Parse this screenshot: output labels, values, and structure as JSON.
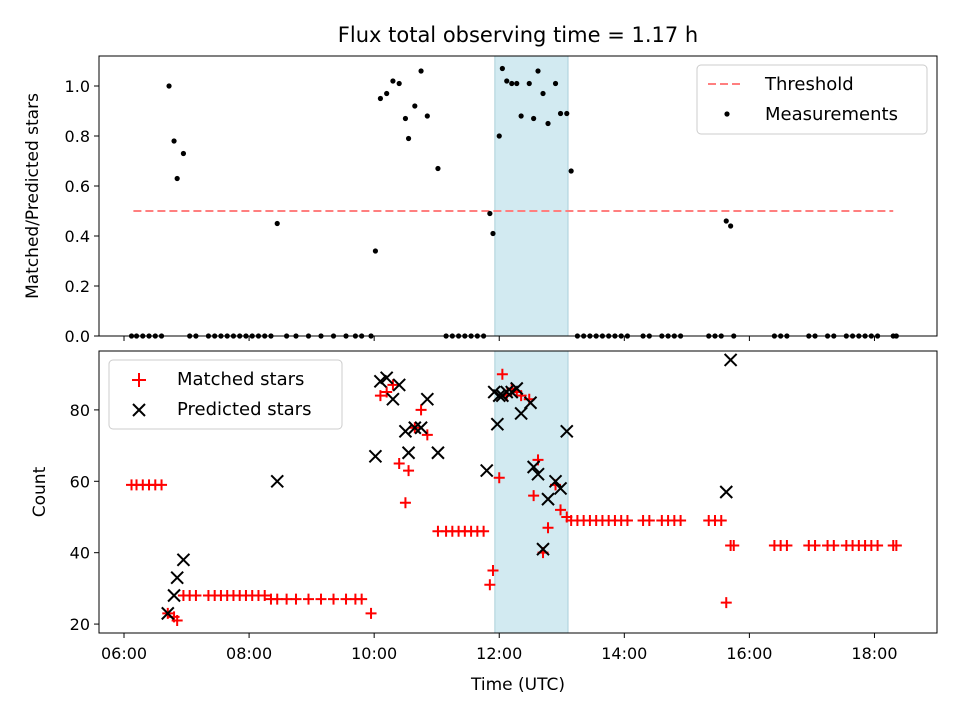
{
  "chart_data": [
    {
      "type": "scatter",
      "title": "Flux total observing time = 1.17 h",
      "ylabel": "Matched/Predicted stars",
      "xlim": [
        5.6,
        19.0
      ],
      "ylim": [
        0.0,
        1.12
      ],
      "yticks": [
        "0.0",
        "0.2",
        "0.4",
        "0.6",
        "0.8",
        "1.0"
      ],
      "yticks_values": [
        0.0,
        0.2,
        0.4,
        0.6,
        0.8,
        1.0
      ],
      "shaded_span": [
        11.93,
        13.1
      ],
      "colors": {
        "threshold": "#ff7f7f",
        "measurements": "#000000",
        "span": "#add8e6"
      },
      "legend_position": "upper-right",
      "legend": [
        "Threshold",
        "Measurements"
      ],
      "threshold": {
        "y": 0.5,
        "x": [
          6.15,
          18.3
        ]
      },
      "series": [
        {
          "name": "Measurements",
          "x": [
            6.12,
            6.2,
            6.3,
            6.4,
            6.5,
            6.6,
            6.72,
            6.8,
            6.85,
            6.95,
            7.05,
            7.15,
            7.35,
            7.45,
            7.55,
            7.65,
            7.75,
            7.85,
            7.95,
            8.05,
            8.15,
            8.25,
            8.35,
            8.45,
            8.6,
            8.75,
            8.95,
            9.15,
            9.35,
            9.55,
            9.7,
            9.8,
            9.95,
            10.02,
            10.1,
            10.2,
            10.3,
            10.4,
            10.5,
            10.55,
            10.65,
            10.75,
            10.85,
            11.02,
            11.15,
            11.25,
            11.35,
            11.45,
            11.55,
            11.65,
            11.75,
            11.85,
            11.9,
            12.0,
            12.05,
            12.12,
            12.2,
            12.28,
            12.35,
            12.48,
            12.55,
            12.62,
            12.7,
            12.78,
            12.9,
            12.98,
            13.08,
            13.15,
            13.25,
            13.35,
            13.45,
            13.55,
            13.65,
            13.75,
            13.85,
            13.95,
            14.05,
            14.3,
            14.4,
            14.6,
            14.7,
            14.8,
            14.9,
            15.35,
            15.45,
            15.55,
            15.63,
            15.7,
            15.75,
            16.4,
            16.5,
            16.6,
            16.95,
            17.05,
            17.25,
            17.35,
            17.55,
            17.65,
            17.75,
            17.85,
            17.95,
            18.05,
            18.3,
            18.35
          ],
          "y": [
            0,
            0,
            0,
            0,
            0,
            0,
            1.0,
            0.78,
            0.63,
            0.73,
            0,
            0,
            0,
            0,
            0,
            0,
            0,
            0,
            0,
            0,
            0,
            0,
            0,
            0.45,
            0,
            0,
            0,
            0,
            0,
            0,
            0,
            0,
            0,
            0.34,
            0.95,
            0.97,
            1.02,
            1.01,
            0.87,
            0.79,
            0.92,
            1.06,
            0.88,
            0.67,
            0,
            0,
            0,
            0,
            0,
            0,
            0,
            0.49,
            0.41,
            0.8,
            1.07,
            1.02,
            1.01,
            1.01,
            0.88,
            1.01,
            0.87,
            1.06,
            0.97,
            0.85,
            1.01,
            0.89,
            0.89,
            0.66,
            0,
            0,
            0,
            0,
            0,
            0,
            0,
            0,
            0,
            0,
            0,
            0,
            0,
            0,
            0,
            0,
            0,
            0,
            0.46,
            0.44,
            0,
            0,
            0,
            0,
            0,
            0,
            0,
            0,
            0,
            0,
            0,
            0,
            0,
            0,
            0,
            0
          ]
        }
      ]
    },
    {
      "type": "scatter",
      "xlabel": "Time (UTC)",
      "ylabel": "Count",
      "xlim": [
        5.6,
        19.0
      ],
      "ylim": [
        17.5,
        96.5
      ],
      "xticks": [
        "06:00",
        "08:00",
        "10:00",
        "12:00",
        "14:00",
        "16:00",
        "18:00"
      ],
      "xticks_values": [
        6,
        8,
        10,
        12,
        14,
        16,
        18
      ],
      "yticks": [
        "20",
        "40",
        "60",
        "80"
      ],
      "yticks_values": [
        20,
        40,
        60,
        80
      ],
      "shaded_span": [
        11.93,
        13.1
      ],
      "colors": {
        "matched": "#ff0000",
        "predicted": "#000000",
        "span": "#add8e6"
      },
      "legend_position": "upper-left",
      "legend": [
        "Matched stars",
        "Predicted stars"
      ],
      "series": [
        {
          "name": "Matched stars",
          "x": [
            6.12,
            6.2,
            6.3,
            6.4,
            6.5,
            6.6,
            6.7,
            6.8,
            6.85,
            6.95,
            7.05,
            7.15,
            7.35,
            7.45,
            7.55,
            7.65,
            7.75,
            7.85,
            7.95,
            8.05,
            8.15,
            8.25,
            8.35,
            8.45,
            8.6,
            8.75,
            8.95,
            9.15,
            9.35,
            9.55,
            9.7,
            9.8,
            9.95,
            10.1,
            10.2,
            10.3,
            10.4,
            10.5,
            10.55,
            10.65,
            10.75,
            10.85,
            11.02,
            11.15,
            11.25,
            11.35,
            11.45,
            11.55,
            11.65,
            11.75,
            11.85,
            11.9,
            12.0,
            12.05,
            12.12,
            12.2,
            12.28,
            12.35,
            12.48,
            12.55,
            12.62,
            12.7,
            12.78,
            12.9,
            12.98,
            13.08,
            13.15,
            13.25,
            13.35,
            13.45,
            13.55,
            13.65,
            13.75,
            13.85,
            13.95,
            14.05,
            14.3,
            14.4,
            14.6,
            14.7,
            14.8,
            14.9,
            15.35,
            15.45,
            15.55,
            15.63,
            15.7,
            15.75,
            16.4,
            16.5,
            16.6,
            16.95,
            17.05,
            17.25,
            17.35,
            17.55,
            17.65,
            17.75,
            17.85,
            17.95,
            18.05,
            18.3,
            18.35
          ],
          "y": [
            59,
            59,
            59,
            59,
            59,
            59,
            23,
            22,
            21,
            28,
            28,
            28,
            28,
            28,
            28,
            28,
            28,
            28,
            28,
            28,
            28,
            28,
            27,
            27,
            27,
            27,
            27,
            27,
            27,
            27,
            27,
            27,
            23,
            84,
            85,
            87,
            65,
            54,
            63,
            75,
            80,
            73,
            46,
            46,
            46,
            46,
            46,
            46,
            46,
            46,
            31,
            35,
            61,
            90,
            84,
            86,
            85,
            84,
            83,
            56,
            66,
            40,
            47,
            59,
            52,
            50,
            49,
            49,
            49,
            49,
            49,
            49,
            49,
            49,
            49,
            49,
            49,
            49,
            49,
            49,
            49,
            49,
            49,
            49,
            49,
            26,
            42,
            42,
            42,
            42,
            42,
            42,
            42,
            42,
            42,
            42,
            42,
            42,
            42,
            42,
            42,
            42,
            42
          ]
        },
        {
          "name": "Predicted stars",
          "x": [
            6.7,
            6.8,
            6.85,
            6.95,
            8.45,
            10.02,
            10.1,
            10.2,
            10.3,
            10.4,
            10.5,
            10.55,
            10.65,
            10.75,
            10.85,
            11.02,
            11.8,
            11.92,
            11.97,
            12.0,
            12.05,
            12.12,
            12.2,
            12.28,
            12.35,
            12.5,
            12.55,
            12.62,
            12.7,
            12.78,
            12.9,
            12.98,
            13.08,
            15.63,
            15.7
          ],
          "y": [
            23,
            28,
            33,
            38,
            60,
            67,
            88,
            89,
            83,
            87,
            74,
            68,
            75,
            75,
            83,
            68,
            63,
            85,
            76,
            84,
            84,
            85,
            85,
            86,
            79,
            82,
            64,
            62,
            41,
            55,
            60,
            58,
            74,
            57,
            94
          ]
        }
      ]
    }
  ]
}
